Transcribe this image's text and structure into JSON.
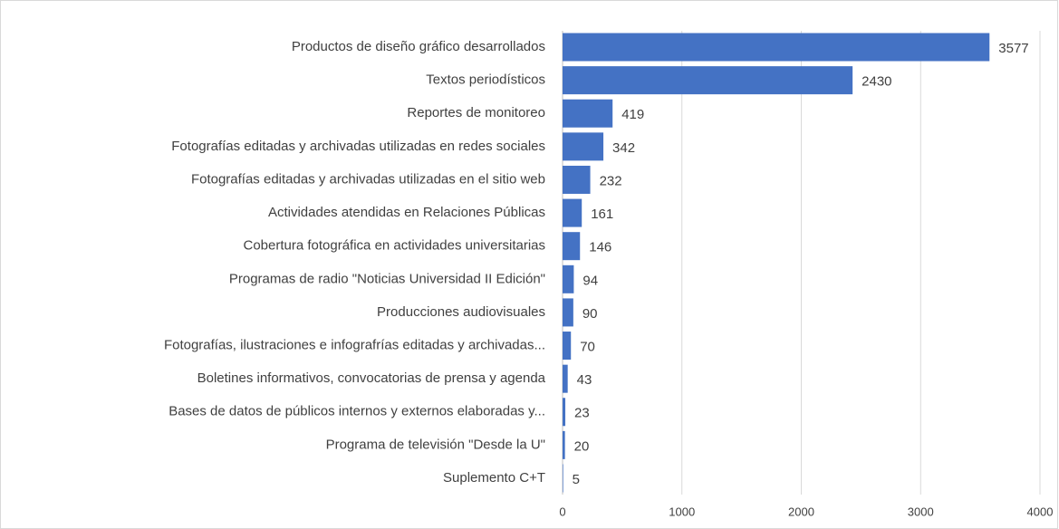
{
  "chart_data": {
    "type": "hbar",
    "categories": [
      "Productos de diseño gráfico desarrollados",
      "Textos periodísticos",
      "Reportes de monitoreo",
      "Fotografías editadas y archivadas utilizadas en redes sociales",
      "Fotografías editadas y archivadas utilizadas en el sitio web",
      "Actividades atendidas en Relaciones Públicas",
      "Cobertura fotográfica en actividades universitarias",
      "Programas de radio \"Noticias Universidad II Edición\"",
      "Producciones audiovisuales",
      "Fotografías, ilustraciones e infografrías editadas y archivadas...",
      "Boletines informativos, convocatorias de prensa y agenda",
      "Bases de datos de públicos internos y externos elaboradas y...",
      "Programa de televisión \"Desde la U\"",
      "Suplemento C+T"
    ],
    "values": [
      3577,
      2430,
      419,
      342,
      232,
      161,
      146,
      94,
      90,
      70,
      43,
      23,
      20,
      5
    ],
    "color": "#4472c4",
    "xlim": [
      0,
      4000
    ],
    "xticks": [
      0,
      1000,
      2000,
      3000,
      4000
    ],
    "grid": true
  }
}
